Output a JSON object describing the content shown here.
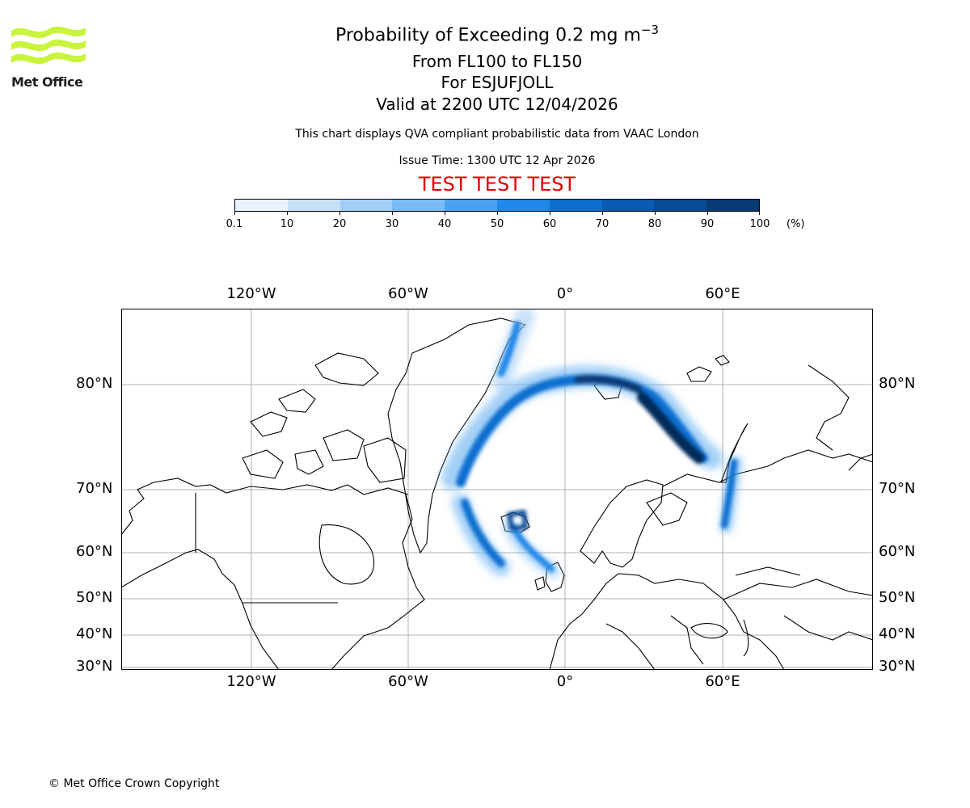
{
  "logo": {
    "text": "Met Office",
    "accent": "#c8f53b"
  },
  "header": {
    "title_main": "Probability of Exceeding 0.2 mg m",
    "title_exp": "−3",
    "levels": "From FL100 to FL150",
    "volcano": "For ESJUFJOLL",
    "valid": "Valid at 2200 UTC 12/04/2026",
    "description": "This chart displays QVA compliant probabilistic data from VAAC London",
    "issue": "Issue Time: 1300 UTC 12 Apr 2026",
    "test_banner": "TEST TEST TEST"
  },
  "colorbar": {
    "ticks": [
      "0.1",
      "10",
      "20",
      "30",
      "40",
      "50",
      "60",
      "70",
      "80",
      "90",
      "100"
    ],
    "unit": "(%)",
    "colors": [
      "#e8f3fd",
      "#c6e0f8",
      "#a3cdf5",
      "#7bbaf3",
      "#4ca2f0",
      "#2088e8",
      "#0c6fd0",
      "#0a5bb0",
      "#084a94",
      "#073a74",
      "#062c58"
    ]
  },
  "map": {
    "lon_labels": [
      "120°W",
      "60°W",
      "0°",
      "60°E"
    ],
    "lat_labels": [
      "80°N",
      "70°N",
      "60°N",
      "50°N",
      "40°N",
      "30°N"
    ],
    "region": "North Atlantic / Arctic"
  },
  "footer": {
    "copyright": "© Met Office Crown Copyright"
  }
}
